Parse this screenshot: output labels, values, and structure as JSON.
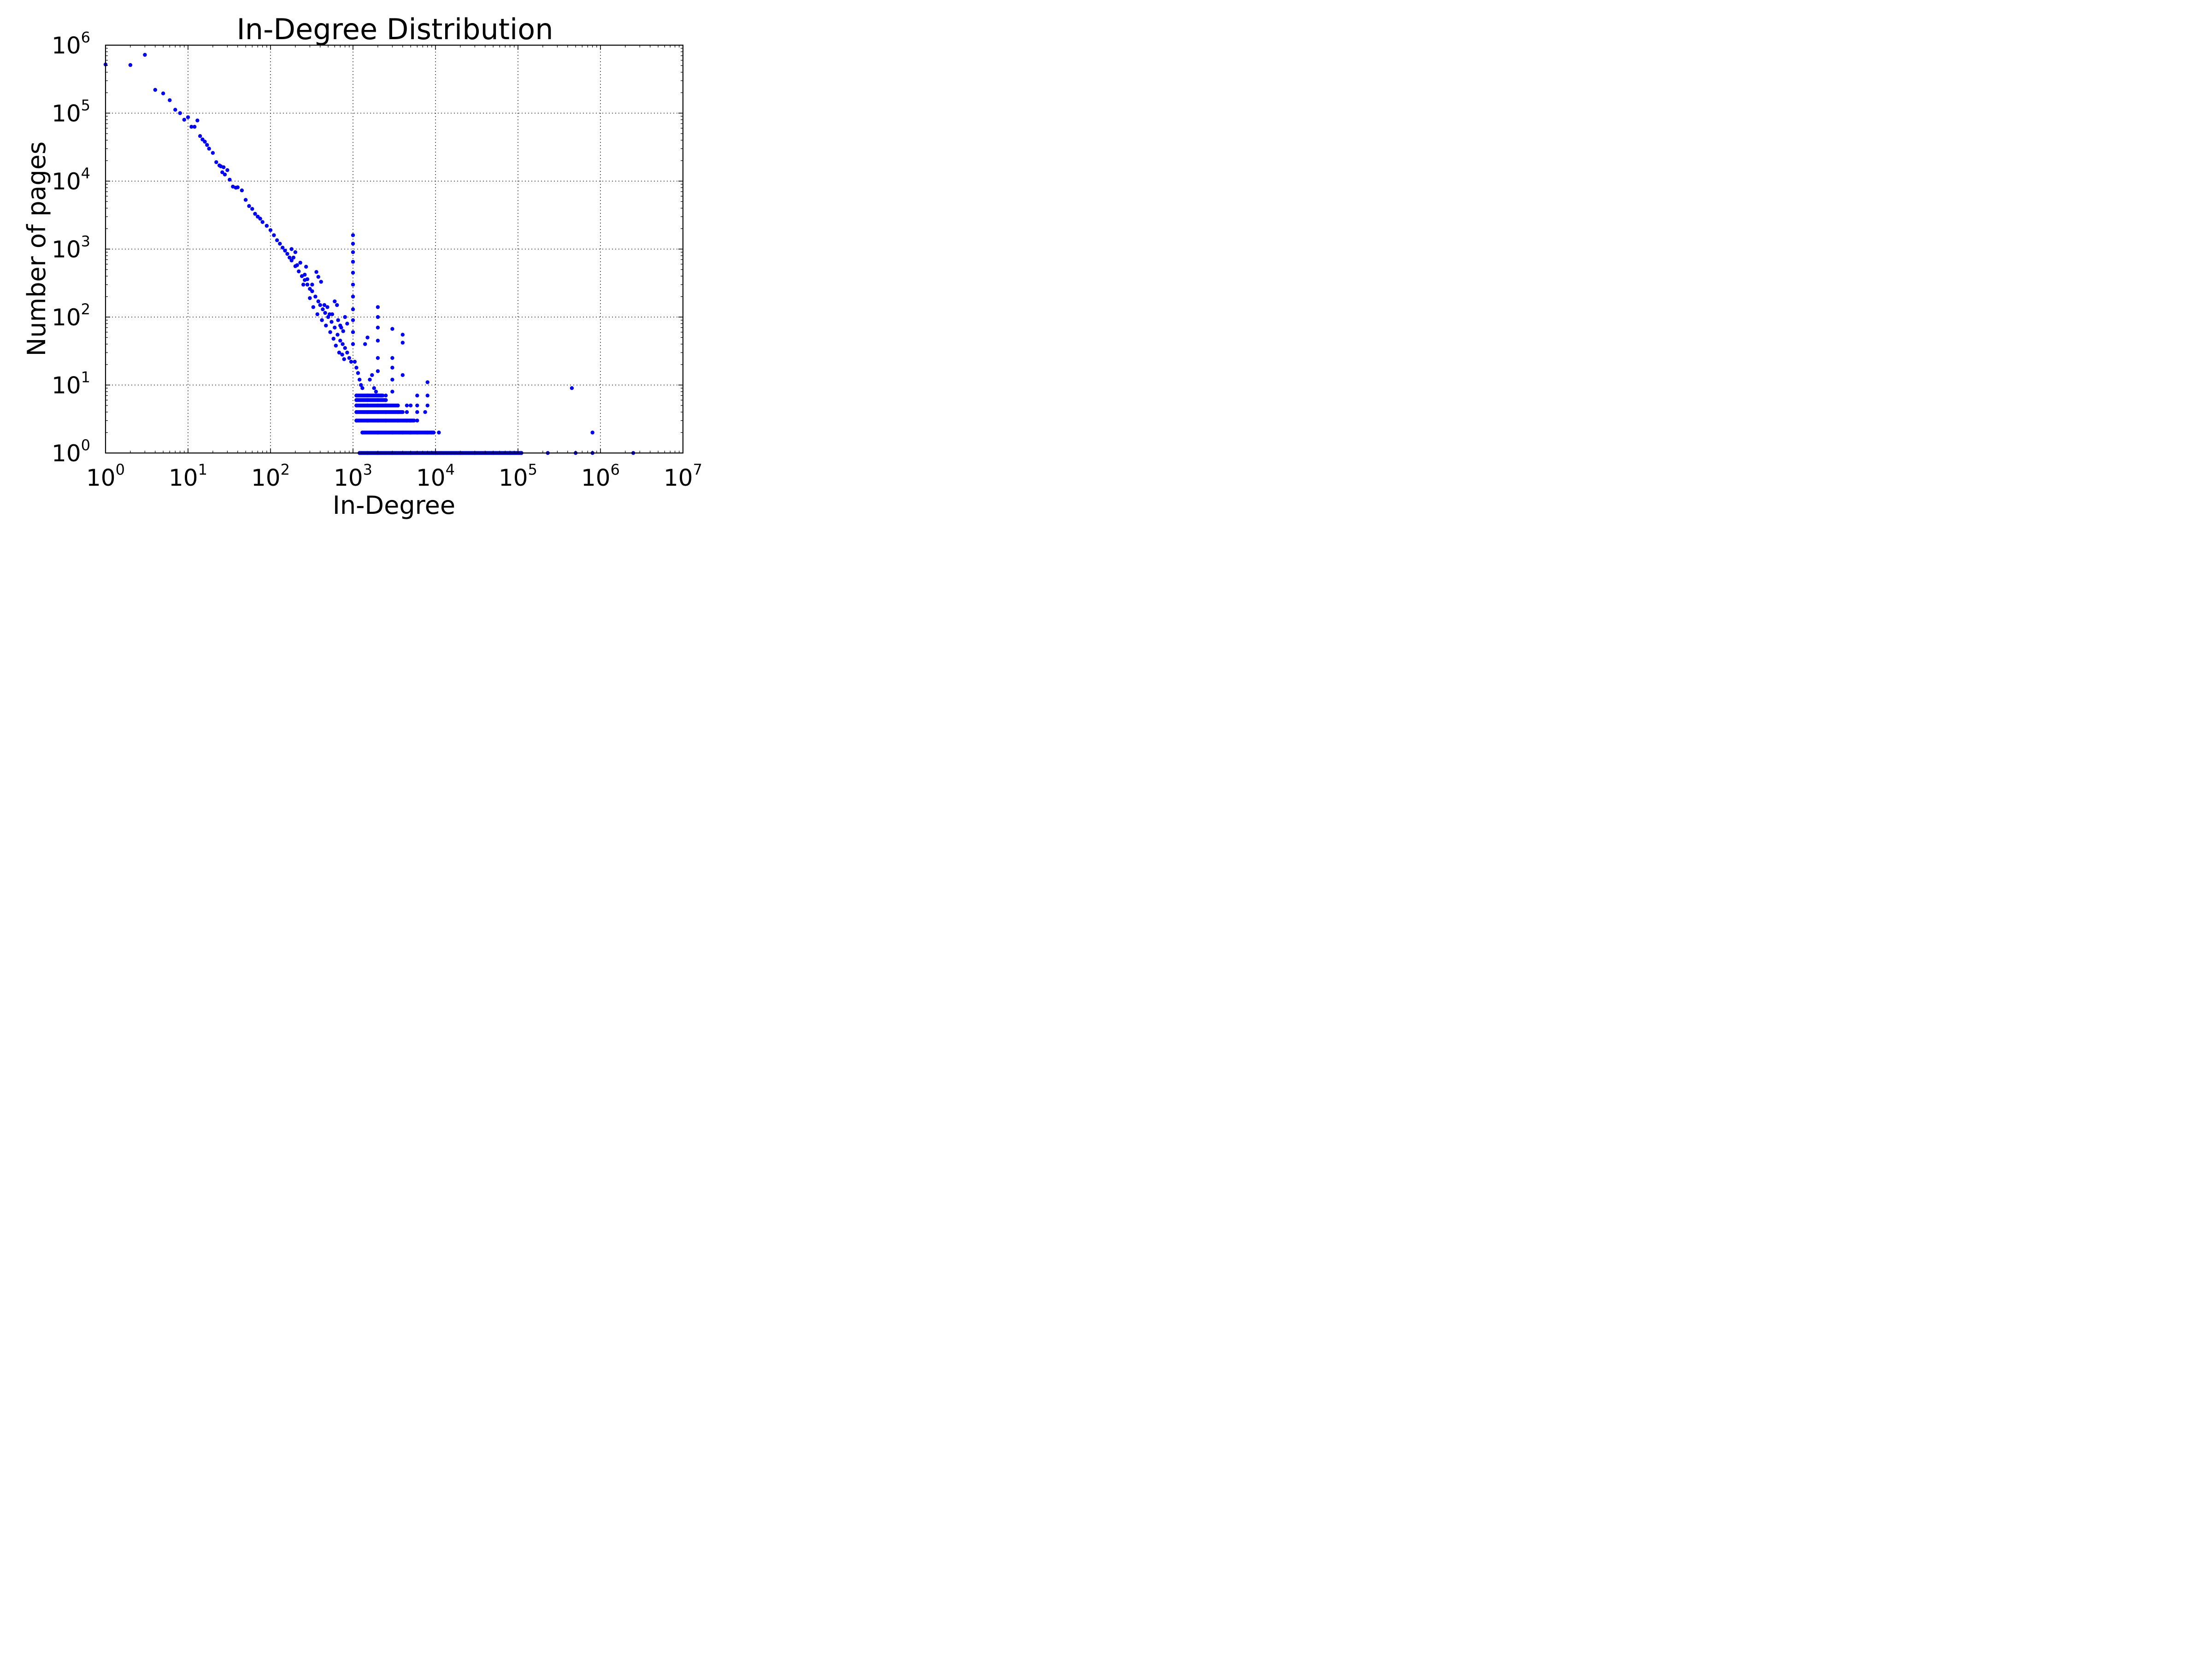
{
  "chart_data": {
    "type": "scatter",
    "title": "In-Degree Distribution",
    "xlabel": "In-Degree",
    "ylabel": "Number of pages",
    "x_scale": "log",
    "y_scale": "log",
    "xlim": [
      1,
      10000000
    ],
    "ylim": [
      1,
      1000000
    ],
    "grid": true,
    "marker_color": "#0000ff",
    "x_ticks": [
      {
        "base": "10",
        "exp": "0"
      },
      {
        "base": "10",
        "exp": "1"
      },
      {
        "base": "10",
        "exp": "2"
      },
      {
        "base": "10",
        "exp": "3"
      },
      {
        "base": "10",
        "exp": "4"
      },
      {
        "base": "10",
        "exp": "5"
      },
      {
        "base": "10",
        "exp": "6"
      },
      {
        "base": "10",
        "exp": "7"
      }
    ],
    "y_ticks": [
      {
        "base": "10",
        "exp": "0"
      },
      {
        "base": "10",
        "exp": "1"
      },
      {
        "base": "10",
        "exp": "2"
      },
      {
        "base": "10",
        "exp": "3"
      },
      {
        "base": "10",
        "exp": "4"
      },
      {
        "base": "10",
        "exp": "5"
      },
      {
        "base": "10",
        "exp": "6"
      }
    ],
    "points": [
      [
        1,
        520000
      ],
      [
        2,
        510000
      ],
      [
        3,
        720000
      ],
      [
        4,
        220000
      ],
      [
        5,
        195000
      ],
      [
        6,
        155000
      ],
      [
        7,
        112000
      ],
      [
        8,
        100000
      ],
      [
        9,
        80000
      ],
      [
        10,
        87000
      ],
      [
        11,
        63000
      ],
      [
        12,
        63000
      ],
      [
        13,
        78000
      ],
      [
        14,
        46000
      ],
      [
        15,
        41000
      ],
      [
        16,
        38000
      ],
      [
        17,
        34000
      ],
      [
        18,
        30000
      ],
      [
        20,
        26000
      ],
      [
        22,
        19000
      ],
      [
        24,
        17000
      ],
      [
        25,
        16500
      ],
      [
        26,
        13500
      ],
      [
        27,
        16000
      ],
      [
        28,
        12500
      ],
      [
        30,
        14500
      ],
      [
        32,
        10500
      ],
      [
        35,
        8300
      ],
      [
        38,
        8000
      ],
      [
        40,
        8100
      ],
      [
        45,
        7300
      ],
      [
        50,
        5300
      ],
      [
        55,
        4300
      ],
      [
        60,
        3900
      ],
      [
        65,
        3300
      ],
      [
        70,
        3000
      ],
      [
        75,
        2800
      ],
      [
        80,
        2500
      ],
      [
        90,
        2200
      ],
      [
        100,
        1900
      ],
      [
        110,
        1600
      ],
      [
        120,
        1350
      ],
      [
        130,
        1200
      ],
      [
        140,
        1050
      ],
      [
        150,
        950
      ],
      [
        160,
        850
      ],
      [
        170,
        750
      ],
      [
        180,
        680
      ],
      [
        200,
        560
      ],
      [
        220,
        470
      ],
      [
        240,
        400
      ],
      [
        260,
        350
      ],
      [
        280,
        300
      ],
      [
        300,
        260
      ],
      [
        320,
        240
      ],
      [
        350,
        200
      ],
      [
        380,
        170
      ],
      [
        400,
        150
      ],
      [
        430,
        130
      ],
      [
        460,
        115
      ],
      [
        500,
        100
      ],
      [
        550,
        85
      ],
      [
        600,
        70
      ],
      [
        650,
        55
      ],
      [
        700,
        45
      ],
      [
        750,
        40
      ],
      [
        800,
        35
      ],
      [
        850,
        30
      ],
      [
        900,
        25
      ],
      [
        950,
        22
      ],
      [
        230,
        630
      ],
      [
        280,
        360
      ],
      [
        320,
        300
      ],
      [
        360,
        460
      ],
      [
        380,
        390
      ],
      [
        410,
        330
      ],
      [
        450,
        150
      ],
      [
        490,
        140
      ],
      [
        520,
        110
      ],
      [
        560,
        110
      ],
      [
        600,
        170
      ],
      [
        640,
        150
      ],
      [
        660,
        90
      ],
      [
        700,
        75
      ],
      [
        720,
        70
      ],
      [
        760,
        62
      ],
      [
        800,
        100
      ],
      [
        850,
        80
      ],
      [
        250,
        300
      ],
      [
        300,
        190
      ],
      [
        330,
        140
      ],
      [
        370,
        110
      ],
      [
        420,
        90
      ],
      [
        470,
        75
      ],
      [
        530,
        60
      ],
      [
        580,
        48
      ],
      [
        620,
        38
      ],
      [
        680,
        30
      ],
      [
        740,
        28
      ],
      [
        780,
        24
      ],
      [
        180,
        1000
      ],
      [
        200,
        900
      ],
      [
        210,
        580
      ],
      [
        190,
        750
      ],
      [
        260,
        420
      ],
      [
        270,
        550
      ],
      [
        1000,
        1600
      ],
      [
        1000,
        1200
      ],
      [
        1000,
        900
      ],
      [
        1000,
        650
      ],
      [
        1000,
        450
      ],
      [
        1000,
        300
      ],
      [
        1000,
        200
      ],
      [
        1000,
        130
      ],
      [
        1000,
        90
      ],
      [
        1000,
        60
      ],
      [
        1000,
        40
      ],
      [
        1050,
        22
      ],
      [
        1100,
        18
      ],
      [
        1150,
        15
      ],
      [
        1200,
        12
      ],
      [
        1250,
        10
      ],
      [
        1300,
        9
      ],
      [
        1400,
        40
      ],
      [
        1500,
        50
      ],
      [
        1600,
        12
      ],
      [
        1700,
        14
      ],
      [
        1800,
        9
      ],
      [
        1900,
        8
      ],
      [
        2000,
        140
      ],
      [
        2000,
        100
      ],
      [
        2000,
        70
      ],
      [
        2000,
        45
      ],
      [
        2000,
        25
      ],
      [
        2000,
        16
      ],
      [
        2200,
        7
      ],
      [
        2500,
        6
      ],
      [
        3000,
        67
      ],
      [
        3000,
        25
      ],
      [
        3000,
        18
      ],
      [
        3000,
        12
      ],
      [
        3000,
        8
      ],
      [
        4000,
        55
      ],
      [
        4000,
        42
      ],
      [
        4000,
        14
      ],
      [
        5000,
        5
      ],
      [
        6000,
        7
      ],
      [
        8000,
        11
      ],
      [
        8000,
        7
      ],
      [
        1100,
        7
      ],
      [
        1500,
        7
      ],
      [
        2000,
        7
      ],
      [
        2500,
        7
      ],
      [
        1100,
        6
      ],
      [
        1500,
        6
      ],
      [
        2000,
        6
      ],
      [
        2500,
        6
      ],
      [
        1100,
        5
      ],
      [
        1500,
        5
      ],
      [
        2000,
        5
      ],
      [
        2500,
        5
      ],
      [
        3500,
        5
      ],
      [
        4500,
        5
      ],
      [
        6000,
        5
      ],
      [
        8000,
        5
      ],
      [
        1100,
        4
      ],
      [
        1500,
        4
      ],
      [
        2000,
        4
      ],
      [
        2500,
        4
      ],
      [
        3500,
        4
      ],
      [
        4500,
        4
      ],
      [
        6000,
        4
      ],
      [
        7500,
        4
      ],
      [
        1100,
        3
      ],
      [
        1500,
        3
      ],
      [
        2000,
        3
      ],
      [
        2500,
        3
      ],
      [
        3500,
        3
      ],
      [
        4500,
        3
      ],
      [
        5000,
        3
      ],
      [
        6000,
        3
      ],
      [
        1300,
        2
      ],
      [
        2000,
        2
      ],
      [
        3000,
        2
      ],
      [
        4000,
        2
      ],
      [
        5000,
        2
      ],
      [
        6000,
        2
      ],
      [
        8000,
        2
      ],
      [
        9000,
        2
      ],
      [
        11000,
        2
      ],
      [
        1200,
        1
      ],
      [
        1500,
        1
      ],
      [
        2000,
        1
      ],
      [
        3000,
        1
      ],
      [
        5000,
        1
      ],
      [
        10000,
        1
      ],
      [
        20000,
        1
      ],
      [
        30000,
        1
      ],
      [
        50000,
        1
      ],
      [
        80000,
        1
      ],
      [
        110000,
        1
      ],
      [
        230000,
        1
      ],
      [
        500000,
        1
      ],
      [
        800000,
        1
      ],
      [
        2500000,
        1
      ],
      [
        450000,
        9
      ],
      [
        800000,
        2
      ]
    ],
    "dense_bands": [
      {
        "y": 1,
        "x_from": 1200,
        "x_to": 110000
      },
      {
        "y": 2,
        "x_from": 1300,
        "x_to": 9500
      },
      {
        "y": 3,
        "x_from": 1100,
        "x_to": 5500
      },
      {
        "y": 4,
        "x_from": 1100,
        "x_to": 4000
      },
      {
        "y": 5,
        "x_from": 1100,
        "x_to": 3500
      },
      {
        "y": 6,
        "x_from": 1100,
        "x_to": 2500
      },
      {
        "y": 7,
        "x_from": 1100,
        "x_to": 2300
      }
    ]
  }
}
